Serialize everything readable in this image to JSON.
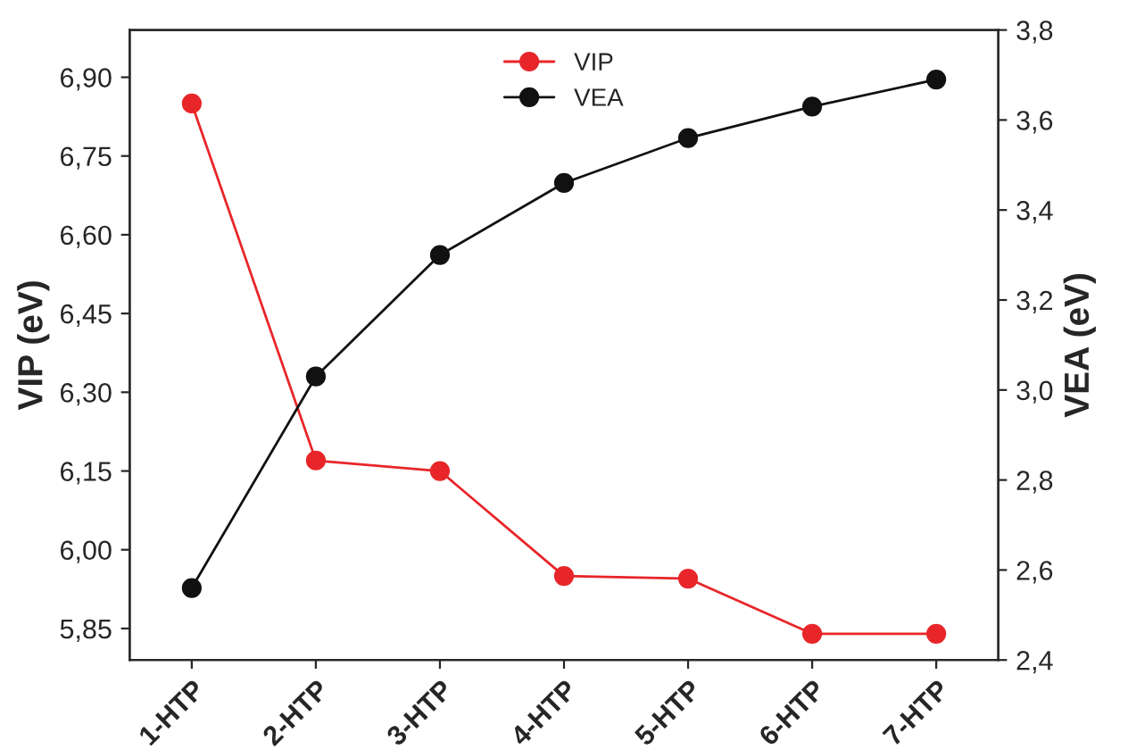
{
  "chart_data": {
    "type": "line",
    "categories": [
      "1-HTP",
      "2-HTP",
      "3-HTP",
      "4-HTP",
      "5-HTP",
      "6-HTP",
      "7-HTP"
    ],
    "series": [
      {
        "name": "VIP",
        "color": "#e8262a",
        "values": [
          6.85,
          6.17,
          6.15,
          5.95,
          5.945,
          5.84,
          5.84
        ]
      },
      {
        "name": "VEA",
        "color": "#111111",
        "axis": "y2",
        "values": [
          2.56,
          3.03,
          3.3,
          3.46,
          3.56,
          3.63,
          3.69
        ]
      }
    ],
    "ylabel": "VIP (eV)",
    "y2label": "VEA (eV)",
    "ylim": [
      5.79,
      6.99
    ],
    "yticks": [
      {
        "value": 5.85,
        "label": "5,85"
      },
      {
        "value": 6.0,
        "label": "6,00"
      },
      {
        "value": 6.15,
        "label": "6,15"
      },
      {
        "value": 6.3,
        "label": "6,30"
      },
      {
        "value": 6.45,
        "label": "6,45"
      },
      {
        "value": 6.6,
        "label": "6,60"
      },
      {
        "value": 6.75,
        "label": "6,75"
      },
      {
        "value": 6.9,
        "label": "6,90"
      }
    ],
    "y2lim": [
      2.4,
      3.8
    ],
    "y2ticks": [
      {
        "value": 2.4,
        "label": "2,4"
      },
      {
        "value": 2.6,
        "label": "2,6"
      },
      {
        "value": 2.8,
        "label": "2,8"
      },
      {
        "value": 3.0,
        "label": "3,0"
      },
      {
        "value": 3.2,
        "label": "3,2"
      },
      {
        "value": 3.4,
        "label": "3,4"
      },
      {
        "value": 3.6,
        "label": "3,6"
      },
      {
        "value": 3.8,
        "label": "3,8"
      }
    ],
    "legend": "top",
    "marker": "circle",
    "line_style": "solid",
    "grid": false
  }
}
